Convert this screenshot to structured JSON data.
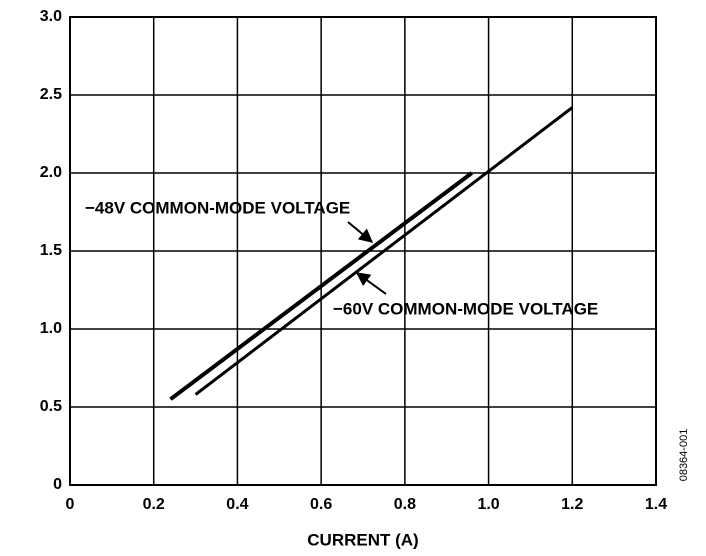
{
  "chart_data": {
    "type": "line",
    "x_label": "CURRENT (A)",
    "side_note": "08364-001",
    "series": [
      {
        "name": "−48V COMMON-MODE VOLTAGE",
        "color": "#000000",
        "x": [
          0.24,
          0.96
        ],
        "values": [
          0.55,
          2.0
        ]
      },
      {
        "name": "−60V COMMON-MODE VOLTAGE",
        "color": "#000000",
        "x": [
          0.3,
          1.2
        ],
        "values": [
          0.58,
          2.42
        ]
      }
    ],
    "xlim": [
      0,
      1.4
    ],
    "ylim": [
      0,
      3
    ],
    "xticks": [
      0,
      0.2,
      0.4,
      0.6,
      0.8,
      {
        "value": 1,
        "label": "1.0"
      },
      1.2,
      1.4
    ],
    "yticks": [
      0,
      0.5,
      {
        "value": 1,
        "label": "1.0"
      },
      1.5,
      {
        "value": 2,
        "label": "2.0"
      },
      2.5,
      {
        "value": 3,
        "label": "3.0"
      }
    ],
    "grid": true
  }
}
